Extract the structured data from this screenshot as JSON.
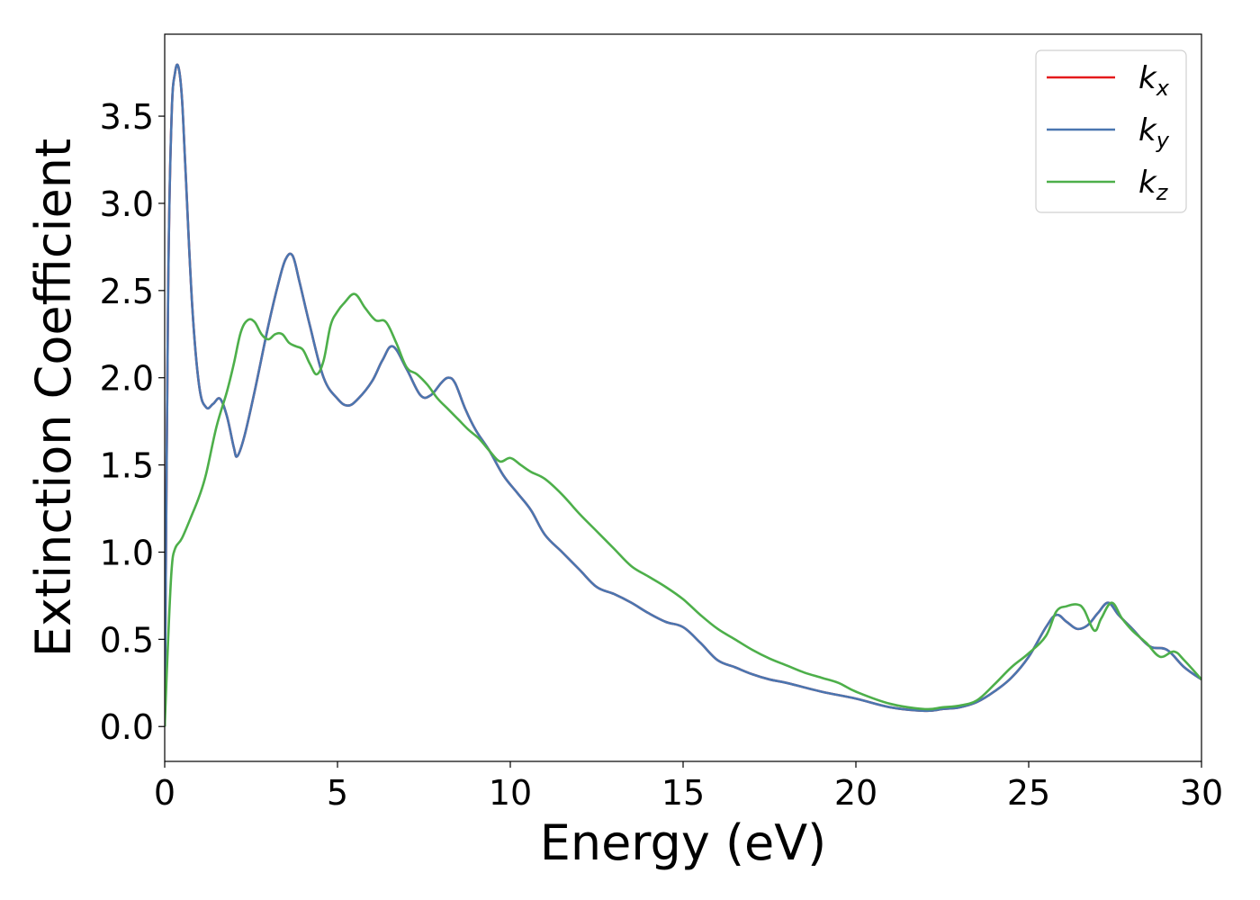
{
  "chart_data": {
    "type": "line",
    "title": "",
    "xlabel": "Energy (eV)",
    "ylabel": "Extinction Coefficient",
    "xlim": [
      0,
      30
    ],
    "ylim": [
      -0.2,
      3.97
    ],
    "xticks": [
      0,
      5,
      10,
      15,
      20,
      25,
      30
    ],
    "xtick_labels": [
      "0",
      "5",
      "10",
      "15",
      "20",
      "25",
      "30"
    ],
    "yticks": [
      0.0,
      0.5,
      1.0,
      1.5,
      2.0,
      2.5,
      3.0,
      3.5
    ],
    "ytick_labels": [
      "0.0",
      "0.5",
      "1.0",
      "1.5",
      "2.0",
      "2.5",
      "3.0",
      "3.5"
    ],
    "grid": false,
    "legend_position": "top-right",
    "series": [
      {
        "name": "k",
        "name_sub": "x",
        "color": "#e41a1c",
        "x": [
          0,
          0.1,
          0.2,
          0.3,
          0.4,
          0.5,
          0.6,
          0.8,
          1.0,
          1.2,
          1.4,
          1.6,
          1.8,
          2.0,
          2.1,
          2.3,
          2.6,
          3.0,
          3.3,
          3.5,
          3.7,
          3.9,
          4.2,
          4.6,
          5.0,
          5.3,
          5.6,
          6.0,
          6.3,
          6.6,
          7.0,
          7.4,
          7.7,
          8.0,
          8.2,
          8.4,
          8.7,
          9.0,
          9.4,
          9.8,
          10.2,
          10.6,
          11.0,
          11.5,
          12.0,
          12.5,
          13.0,
          13.5,
          14.0,
          14.5,
          15.0,
          15.5,
          16.0,
          16.5,
          17.0,
          17.5,
          18.0,
          19.0,
          20.0,
          21.0,
          22.0,
          22.5,
          23.0,
          23.5,
          24.0,
          24.5,
          25.0,
          25.5,
          25.8,
          26.1,
          26.4,
          26.7,
          27.0,
          27.3,
          27.6,
          28.0,
          28.5,
          29.0,
          29.5,
          30.0
        ],
        "y": [
          0,
          2.5,
          3.5,
          3.75,
          3.78,
          3.6,
          3.2,
          2.4,
          1.95,
          1.83,
          1.85,
          1.88,
          1.78,
          1.6,
          1.55,
          1.66,
          1.92,
          2.3,
          2.55,
          2.68,
          2.7,
          2.55,
          2.3,
          2.0,
          1.88,
          1.84,
          1.88,
          1.98,
          2.1,
          2.18,
          2.05,
          1.9,
          1.9,
          1.97,
          2.0,
          1.97,
          1.82,
          1.7,
          1.58,
          1.44,
          1.34,
          1.24,
          1.1,
          1.0,
          0.9,
          0.8,
          0.76,
          0.71,
          0.65,
          0.6,
          0.57,
          0.48,
          0.38,
          0.34,
          0.3,
          0.27,
          0.25,
          0.2,
          0.16,
          0.11,
          0.09,
          0.1,
          0.11,
          0.14,
          0.2,
          0.28,
          0.4,
          0.57,
          0.64,
          0.6,
          0.56,
          0.58,
          0.65,
          0.71,
          0.64,
          0.56,
          0.46,
          0.44,
          0.34,
          0.27
        ]
      },
      {
        "name": "k",
        "name_sub": "y",
        "color": "#4a76b0",
        "x": [
          0,
          0.1,
          0.2,
          0.3,
          0.4,
          0.5,
          0.6,
          0.8,
          1.0,
          1.2,
          1.4,
          1.6,
          1.8,
          2.0,
          2.1,
          2.3,
          2.6,
          3.0,
          3.3,
          3.5,
          3.7,
          3.9,
          4.2,
          4.6,
          5.0,
          5.3,
          5.6,
          6.0,
          6.3,
          6.6,
          7.0,
          7.4,
          7.7,
          8.0,
          8.2,
          8.4,
          8.7,
          9.0,
          9.4,
          9.8,
          10.2,
          10.6,
          11.0,
          11.5,
          12.0,
          12.5,
          13.0,
          13.5,
          14.0,
          14.5,
          15.0,
          15.5,
          16.0,
          16.5,
          17.0,
          17.5,
          18.0,
          19.0,
          20.0,
          21.0,
          22.0,
          22.5,
          23.0,
          23.5,
          24.0,
          24.5,
          25.0,
          25.5,
          25.8,
          26.1,
          26.4,
          26.7,
          27.0,
          27.3,
          27.6,
          28.0,
          28.5,
          29.0,
          29.5,
          30.0
        ],
        "y": [
          0,
          2.5,
          3.5,
          3.75,
          3.78,
          3.6,
          3.2,
          2.4,
          1.95,
          1.83,
          1.85,
          1.88,
          1.78,
          1.6,
          1.55,
          1.66,
          1.92,
          2.3,
          2.55,
          2.68,
          2.7,
          2.55,
          2.3,
          2.0,
          1.88,
          1.84,
          1.88,
          1.98,
          2.1,
          2.18,
          2.05,
          1.9,
          1.9,
          1.97,
          2.0,
          1.97,
          1.82,
          1.7,
          1.58,
          1.44,
          1.34,
          1.24,
          1.1,
          1.0,
          0.9,
          0.8,
          0.76,
          0.71,
          0.65,
          0.6,
          0.57,
          0.48,
          0.38,
          0.34,
          0.3,
          0.27,
          0.25,
          0.2,
          0.16,
          0.11,
          0.09,
          0.1,
          0.11,
          0.14,
          0.2,
          0.28,
          0.4,
          0.57,
          0.64,
          0.6,
          0.56,
          0.58,
          0.65,
          0.71,
          0.64,
          0.56,
          0.46,
          0.44,
          0.34,
          0.27
        ]
      },
      {
        "name": "k",
        "name_sub": "z",
        "color": "#4daf4a",
        "x": [
          0,
          0.1,
          0.2,
          0.3,
          0.5,
          0.8,
          1.0,
          1.2,
          1.5,
          1.8,
          2.0,
          2.2,
          2.4,
          2.6,
          2.8,
          3.0,
          3.2,
          3.4,
          3.6,
          3.8,
          4.0,
          4.2,
          4.4,
          4.6,
          4.8,
          5.0,
          5.2,
          5.5,
          5.8,
          6.1,
          6.4,
          6.7,
          7.0,
          7.3,
          7.6,
          7.9,
          8.2,
          8.5,
          8.8,
          9.1,
          9.4,
          9.7,
          10.0,
          10.3,
          10.6,
          11.0,
          11.5,
          12.0,
          12.5,
          13.0,
          13.5,
          14.0,
          14.5,
          15.0,
          15.5,
          16.0,
          16.5,
          17.0,
          17.5,
          18.0,
          18.5,
          19.0,
          19.5,
          20.0,
          21.0,
          22.0,
          22.5,
          23.0,
          23.5,
          24.0,
          24.5,
          25.0,
          25.5,
          25.8,
          26.1,
          26.4,
          26.6,
          26.9,
          27.1,
          27.4,
          27.7,
          28.0,
          28.4,
          28.8,
          29.2,
          29.5,
          30.0
        ],
        "y": [
          0,
          0.5,
          0.9,
          1.02,
          1.08,
          1.22,
          1.32,
          1.45,
          1.72,
          1.92,
          2.08,
          2.26,
          2.33,
          2.32,
          2.25,
          2.22,
          2.25,
          2.25,
          2.2,
          2.18,
          2.16,
          2.08,
          2.02,
          2.1,
          2.3,
          2.38,
          2.43,
          2.48,
          2.4,
          2.33,
          2.32,
          2.2,
          2.06,
          2.02,
          1.96,
          1.88,
          1.82,
          1.76,
          1.7,
          1.65,
          1.58,
          1.52,
          1.54,
          1.5,
          1.46,
          1.42,
          1.33,
          1.22,
          1.12,
          1.02,
          0.92,
          0.86,
          0.8,
          0.73,
          0.64,
          0.56,
          0.5,
          0.44,
          0.39,
          0.35,
          0.31,
          0.28,
          0.25,
          0.2,
          0.13,
          0.1,
          0.11,
          0.12,
          0.15,
          0.24,
          0.34,
          0.42,
          0.52,
          0.66,
          0.69,
          0.7,
          0.67,
          0.55,
          0.62,
          0.71,
          0.62,
          0.55,
          0.48,
          0.4,
          0.43,
          0.38,
          0.27
        ]
      }
    ]
  }
}
